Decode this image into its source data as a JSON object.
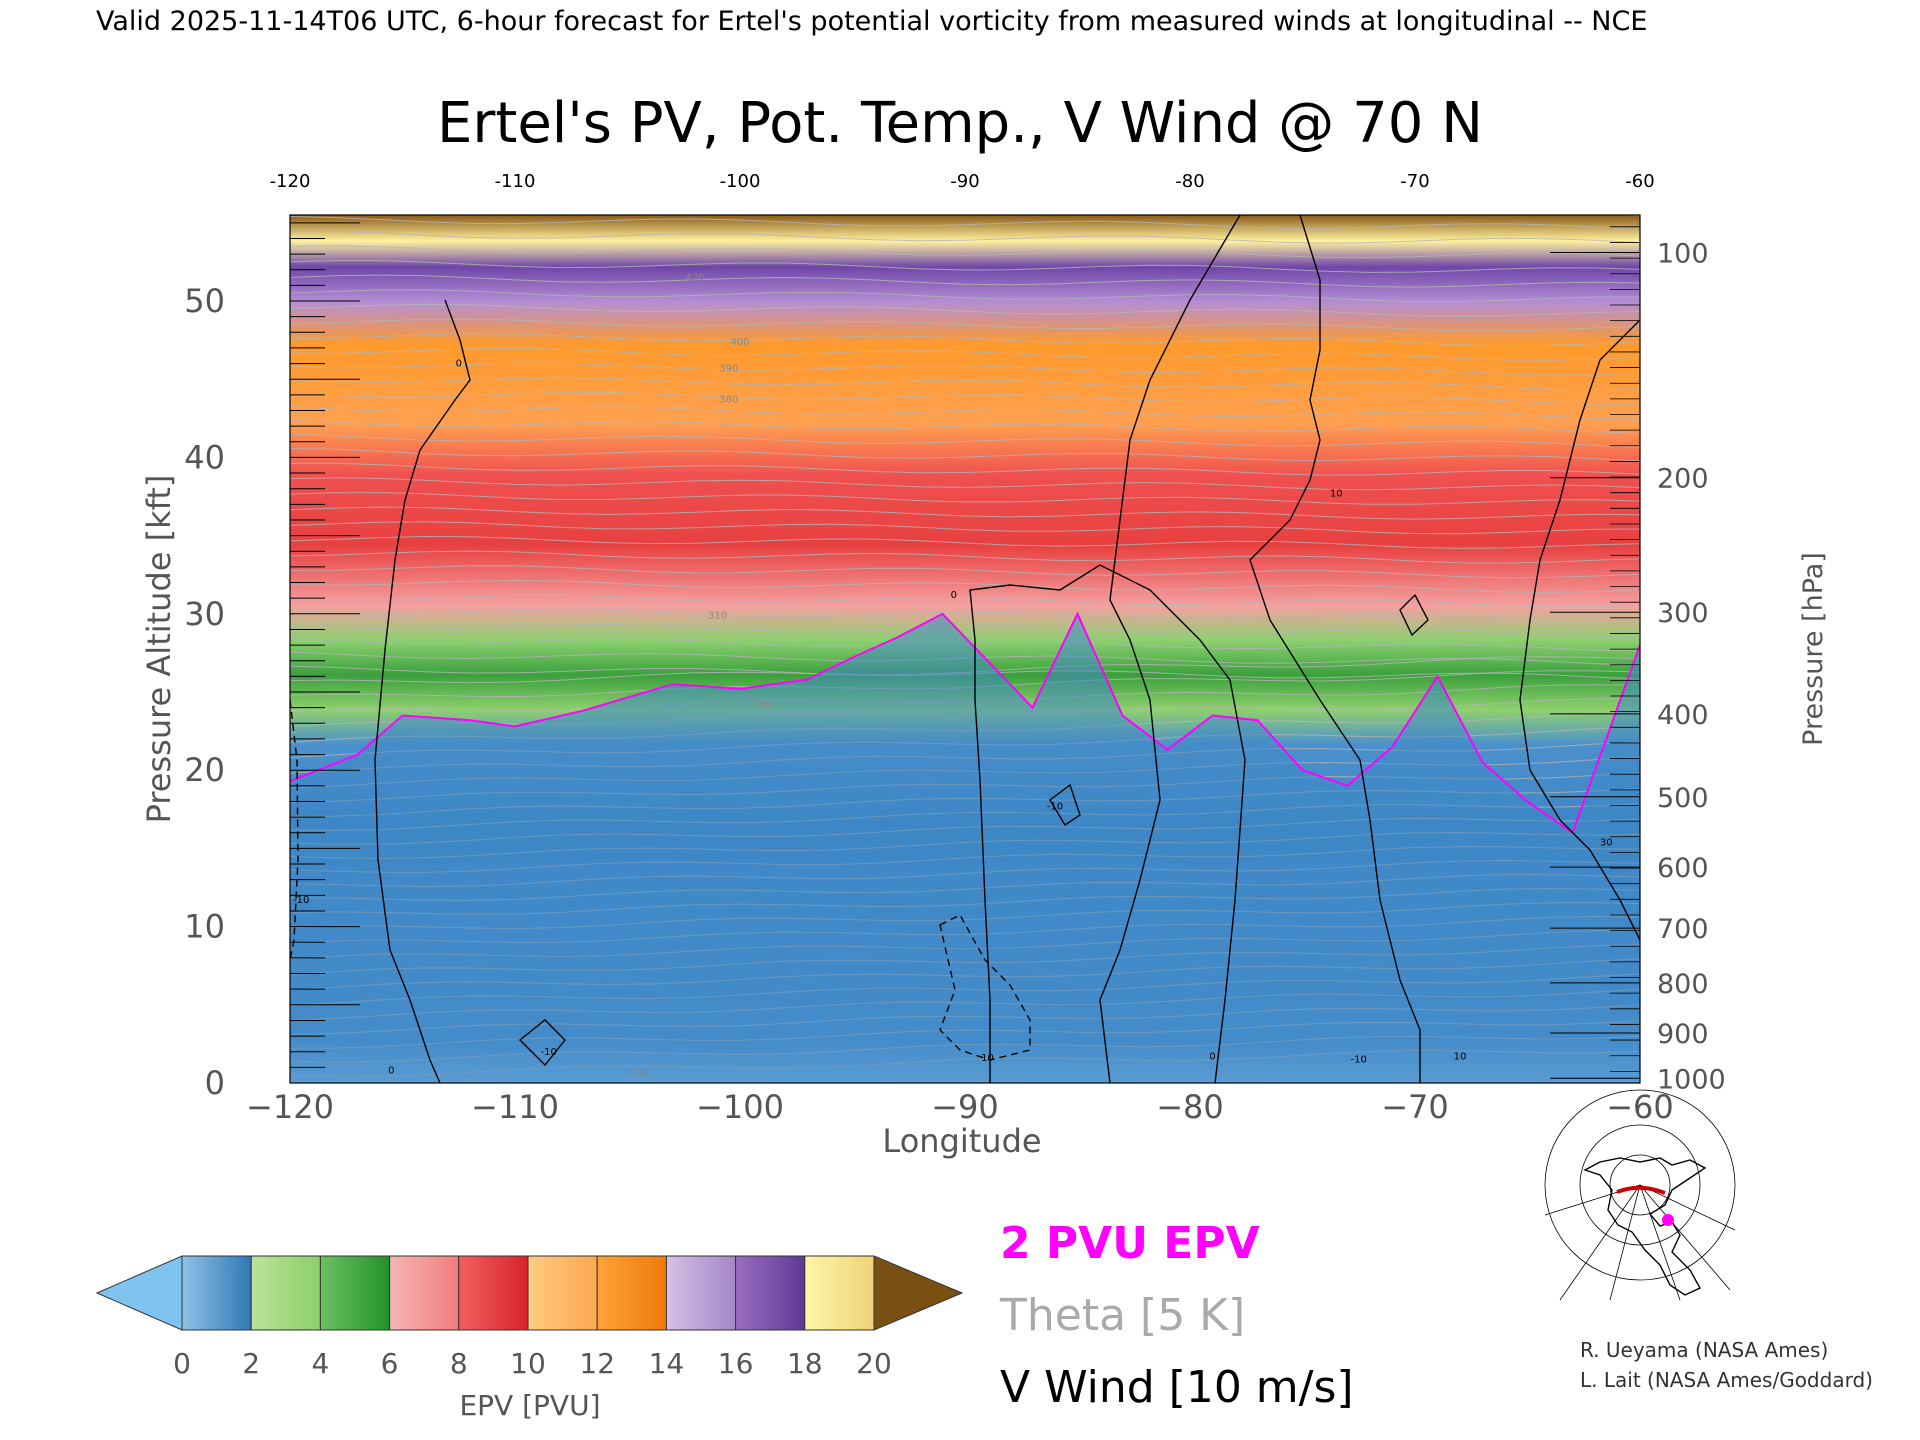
{
  "header": {
    "caption": "Valid 2025-11-14T06 UTC, 6-hour forecast for Ertel's potential vorticity from measured winds at longitudinal -- NCE"
  },
  "chart_data": {
    "type": "heatmap",
    "title": "Ertel's PV, Pot. Temp., V Wind @ 70 N",
    "xlabel": "Longitude",
    "ylabel": "Pressure Altitude [kft]",
    "y2label": "Pressure [hPa]",
    "xlim": [
      -120,
      -60
    ],
    "ylim": [
      0,
      55.5
    ],
    "x_ticks": [
      -120,
      -110,
      -100,
      -90,
      -80,
      -70,
      -60
    ],
    "x_tick_labels": [
      "−120",
      "−110",
      "−100",
      "−90",
      "−80",
      "−70",
      "−60"
    ],
    "top_tick_labels": [
      "-120",
      "-110",
      "-100",
      "-90",
      "-80",
      "-70",
      "-60"
    ],
    "y_ticks": [
      0,
      10,
      20,
      30,
      40,
      50
    ],
    "y_tick_labels": [
      "0",
      "10",
      "20",
      "30",
      "40",
      "50"
    ],
    "pressure_levels": [
      {
        "label": "100",
        "kft": 53.1
      },
      {
        "label": "200",
        "kft": 38.7
      },
      {
        "label": "300",
        "kft": 30.1
      },
      {
        "label": "400",
        "kft": 23.6
      },
      {
        "label": "500",
        "kft": 18.3
      },
      {
        "label": "600",
        "kft": 13.8
      },
      {
        "label": "700",
        "kft": 9.9
      },
      {
        "label": "800",
        "kft": 6.4
      },
      {
        "label": "900",
        "kft": 3.2
      },
      {
        "label": "1000",
        "kft": 0.3
      }
    ],
    "pv_ceiling_kft": [
      [
        -120,
        19.3
      ],
      [
        -117,
        21.0
      ],
      [
        -115,
        23.5
      ],
      [
        -112,
        23.2
      ],
      [
        -110,
        22.8
      ],
      [
        -107,
        23.8
      ],
      [
        -103,
        25.5
      ],
      [
        -100,
        25.2
      ],
      [
        -97,
        25.8
      ],
      [
        -95,
        27.2
      ],
      [
        -93,
        28.5
      ],
      [
        -91,
        30.0
      ],
      [
        -89,
        27.0
      ],
      [
        -87,
        24.0
      ],
      [
        -85,
        30.0
      ],
      [
        -83,
        23.5
      ],
      [
        -81,
        21.3
      ],
      [
        -79,
        23.5
      ],
      [
        -77,
        23.2
      ],
      [
        -75,
        20.0
      ],
      [
        -73,
        19.0
      ],
      [
        -71,
        21.5
      ],
      [
        -69,
        26.0
      ],
      [
        -67,
        20.5
      ],
      [
        -65,
        18.0
      ],
      [
        -63,
        16.0
      ],
      [
        -61,
        24.0
      ],
      [
        -60,
        28.0
      ]
    ],
    "theta_labels": [
      {
        "text": "250",
        "x": -104.5,
        "kft": 0.4
      },
      {
        "text": "300",
        "x": -99,
        "kft": 24.0
      },
      {
        "text": "310",
        "x": -101,
        "kft": 29.7
      },
      {
        "text": "380",
        "x": -100.5,
        "kft": 43.5
      },
      {
        "text": "390",
        "x": -100.5,
        "kft": 45.5
      },
      {
        "text": "400",
        "x": -100,
        "kft": 47.2
      },
      {
        "text": "420",
        "x": -102,
        "kft": 51.3
      }
    ],
    "vwind_labels": [
      {
        "text": "0",
        "x": -112.5,
        "kft": 45.8
      },
      {
        "text": "0",
        "x": -90.5,
        "kft": 31.0
      },
      {
        "text": "0",
        "x": -115.5,
        "kft": 0.6
      },
      {
        "text": "0",
        "x": -79,
        "kft": 1.5
      },
      {
        "text": "10",
        "x": -73.5,
        "kft": 37.5
      },
      {
        "text": "10",
        "x": -89,
        "kft": 1.4
      },
      {
        "text": "10",
        "x": -68,
        "kft": 1.5
      },
      {
        "text": "-10",
        "x": -108.5,
        "kft": 1.8
      },
      {
        "text": "-10",
        "x": -86,
        "kft": 17.5
      },
      {
        "text": "-10",
        "x": -119.5,
        "kft": 11.5
      },
      {
        "text": "-10",
        "x": -72.5,
        "kft": 1.3
      },
      {
        "text": "30",
        "x": -61.5,
        "kft": 15.2
      }
    ],
    "colorbar": {
      "label": "EPV [PVU]",
      "ticks": [
        "0",
        "2",
        "4",
        "6",
        "8",
        "10",
        "12",
        "14",
        "16",
        "18",
        "20"
      ],
      "under_color": "#7fc4f0",
      "over_color": "#7a5012",
      "bins": [
        {
          "from": 0,
          "to": 2,
          "colors": [
            "#8fc2e6",
            "#2f78b8"
          ]
        },
        {
          "from": 2,
          "to": 4,
          "colors": [
            "#bde29a",
            "#8ccf6a"
          ]
        },
        {
          "from": 4,
          "to": 6,
          "colors": [
            "#6cc061",
            "#24922c"
          ]
        },
        {
          "from": 6,
          "to": 8,
          "colors": [
            "#f6b6b6",
            "#f07c7c"
          ]
        },
        {
          "from": 8,
          "to": 10,
          "colors": [
            "#f06060",
            "#d8242a"
          ]
        },
        {
          "from": 10,
          "to": 12,
          "colors": [
            "#ffcc80",
            "#ffa650"
          ]
        },
        {
          "from": 12,
          "to": 14,
          "colors": [
            "#ffa23a",
            "#f07a0c"
          ]
        },
        {
          "from": 14,
          "to": 16,
          "colors": [
            "#d6c0e6",
            "#a486c6"
          ]
        },
        {
          "from": 16,
          "to": 18,
          "colors": [
            "#9a6ec0",
            "#5e3a96"
          ]
        },
        {
          "from": 18,
          "to": 20,
          "colors": [
            "#fff6a8",
            "#f0d278"
          ]
        }
      ]
    }
  },
  "legend": {
    "pvu_label": "2 PVU EPV",
    "theta_label": "Theta [5 K]",
    "vwind_label": "V Wind [10 m/s]",
    "pvu_color": "#ff00ff",
    "theta_color": "#aaaaaa",
    "vwind_color": "#000000"
  },
  "credits": {
    "line1": "R. Ueyama (NASA Ames)",
    "line2": "L. Lait (NASA Ames/Goddard)"
  },
  "locator_map": {
    "marker_color": "#ff00ff",
    "section_color": "#cc0000"
  }
}
